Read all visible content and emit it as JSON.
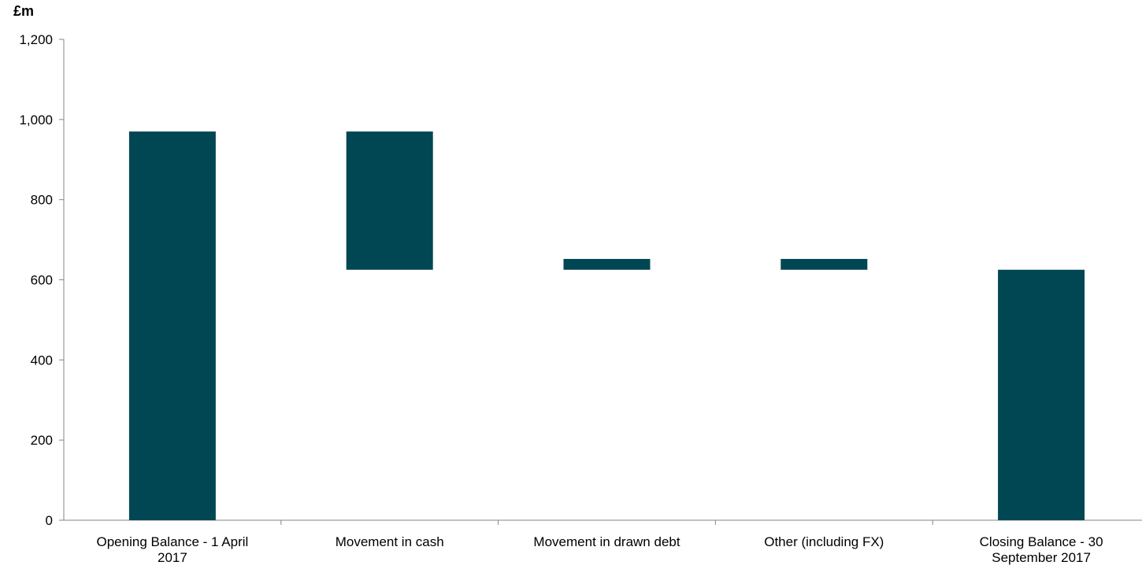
{
  "chart_data": {
    "type": "bar",
    "subtype": "waterfall",
    "unit_label": "£m",
    "categories": [
      [
        "Opening Balance - 1 April",
        "2017"
      ],
      [
        "Movement in cash"
      ],
      [
        "Movement in drawn debt"
      ],
      [
        "Other (including FX)"
      ],
      [
        "Closing Balance - 30",
        "September 2017"
      ]
    ],
    "bars": [
      {
        "base": 0,
        "top": 970
      },
      {
        "base": 625,
        "top": 970
      },
      {
        "base": 625,
        "top": 652
      },
      {
        "base": 625,
        "top": 652
      },
      {
        "base": 0,
        "top": 625
      }
    ],
    "yticks": [
      "0",
      "200",
      "400",
      "600",
      "800",
      "1,000",
      "1,200"
    ],
    "ylim": [
      0,
      1200
    ],
    "grid": false,
    "legend": "none",
    "bar_color": "#004753",
    "axis_color": "#868686"
  }
}
